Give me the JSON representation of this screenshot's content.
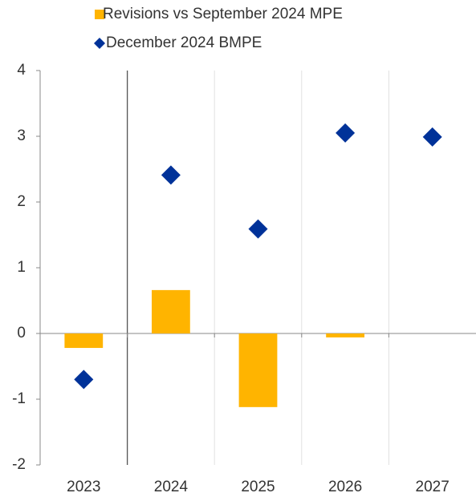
{
  "chart_data": {
    "type": "bar",
    "categories": [
      "2023",
      "2024",
      "2025",
      "2026",
      "2027"
    ],
    "series": [
      {
        "name": "Revisions vs September 2024 MPE",
        "type": "bar",
        "color": "#ffb400",
        "values": [
          -0.22,
          0.66,
          -1.12,
          -0.06,
          0
        ]
      },
      {
        "name": "December 2024 BMPE",
        "type": "scatter",
        "color": "#003299",
        "values": [
          -0.7,
          2.41,
          1.59,
          3.05,
          2.99
        ]
      }
    ],
    "ylim": [
      -2,
      4
    ],
    "yticks": [
      -2,
      -1,
      0,
      1,
      2,
      3,
      4
    ],
    "grid": true
  }
}
